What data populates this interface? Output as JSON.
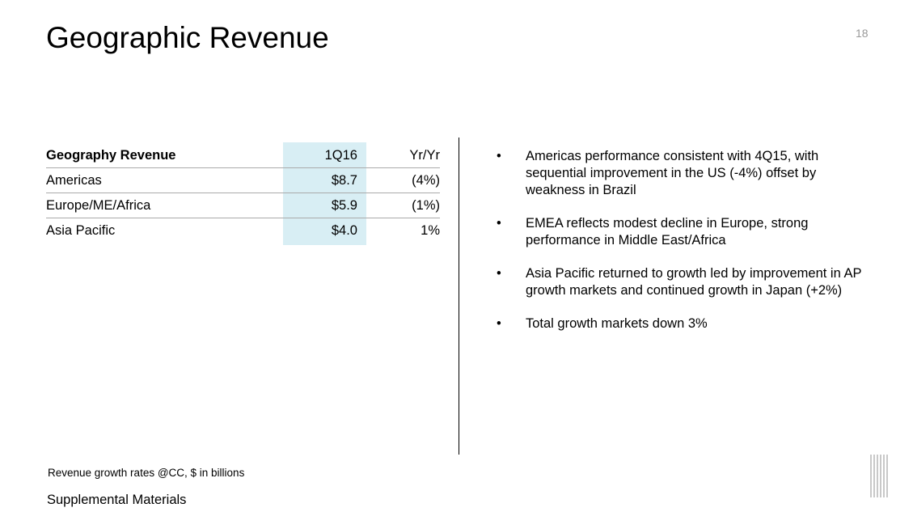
{
  "title": "Geographic Revenue",
  "page_number": "18",
  "table": {
    "headers": [
      "Geography Revenue",
      "1Q16",
      "Yr/Yr"
    ],
    "rows": [
      [
        "Americas",
        "$8.7",
        "(4%)"
      ],
      [
        "Europe/ME/Africa",
        "$5.9",
        "(1%)"
      ],
      [
        "Asia Pacific",
        "$4.0",
        "1%"
      ]
    ]
  },
  "bullet_glyph": "•",
  "bullets": [
    "Americas performance consistent with 4Q15, with sequential improvement in the US (-4%) offset by weakness in Brazil",
    "EMEA reflects modest decline in Europe, strong performance in Middle East/Africa",
    "Asia Pacific returned to growth led by improvement in AP growth markets and continued growth in Japan (+2%)",
    "Total growth markets down 3%"
  ],
  "footnote": "Revenue growth rates @CC, $ in billions",
  "footer": "Supplemental Materials",
  "logo_text": "IBM",
  "colors": {
    "highlight": "#d8eef4"
  }
}
